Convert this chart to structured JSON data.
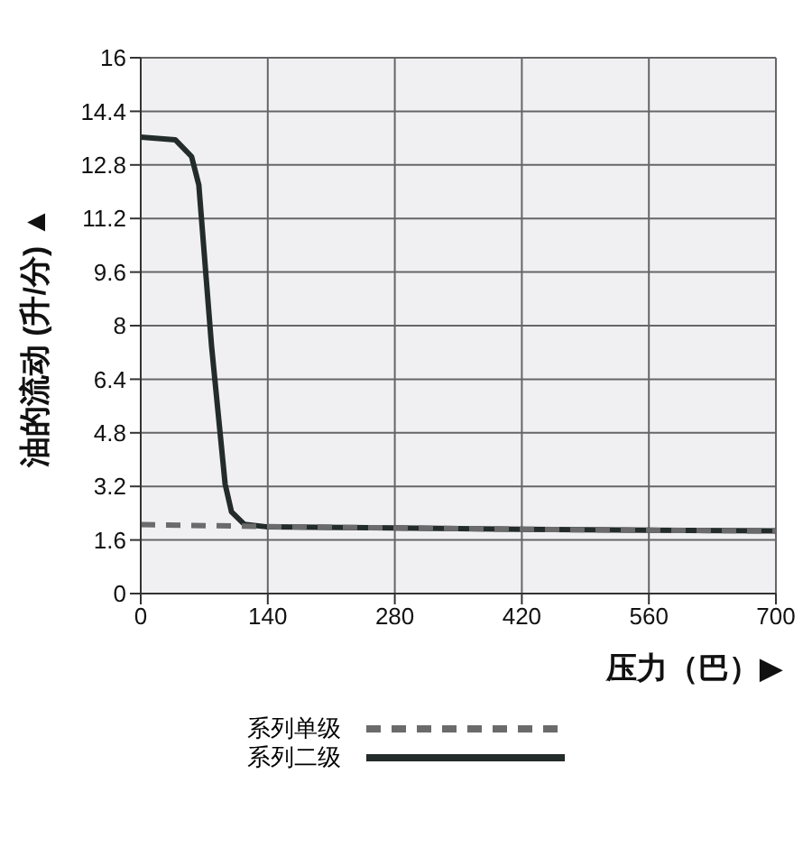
{
  "chart_data": {
    "type": "line",
    "xlabel": "压力（巴）▶",
    "ylabel": "油的流动 (升/分) ▲",
    "xlim": [
      0,
      700
    ],
    "xticks": [
      0,
      140,
      280,
      420,
      560,
      700
    ],
    "ylim": [
      0,
      16
    ],
    "yticks": [
      0,
      1.6,
      3.2,
      4.8,
      6.4,
      8.0,
      9.6,
      11.2,
      12.8,
      14.4,
      16
    ],
    "grid": true,
    "legend": "bottom",
    "marker": "none",
    "series": [
      {
        "name": "系列单级",
        "color": "#6b6b6b",
        "line_style": "dashed",
        "x": [
          0,
          140,
          280,
          420,
          560,
          700
        ],
        "values": [
          2.06,
          2.0,
          1.96,
          1.92,
          1.89,
          1.87
        ]
      },
      {
        "name": "系列二级",
        "color": "#232b2b",
        "line_style": "solid",
        "x": [
          0,
          38,
          56,
          64,
          78,
          93,
          100,
          114,
          140,
          280,
          420,
          560,
          700
        ],
        "values": [
          13.63,
          13.55,
          13.05,
          12.2,
          7.4,
          3.27,
          2.44,
          2.07,
          1.99,
          1.96,
          1.92,
          1.89,
          1.87
        ]
      }
    ]
  }
}
